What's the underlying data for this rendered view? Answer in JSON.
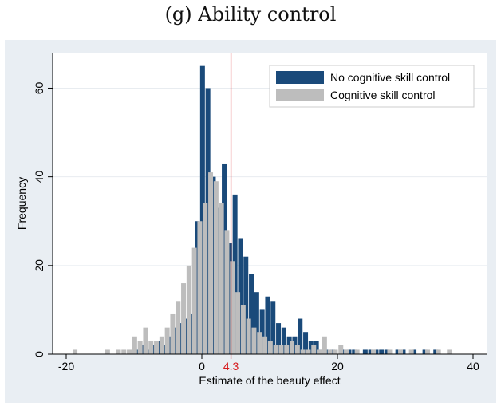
{
  "title": "(g) Ability control",
  "chart_data": {
    "type": "bar",
    "xlabel": "Estimate of the beauty effect",
    "ylabel": "Frequency",
    "xlim": [
      -22,
      42
    ],
    "ylim": [
      0,
      68
    ],
    "xticks": [
      -20,
      0,
      20,
      40
    ],
    "yticks": [
      0,
      20,
      40,
      60
    ],
    "grid": true,
    "legend_position": "top-right",
    "reference_line": {
      "x": 4.3,
      "label": "4.3",
      "color": "#d7191c"
    },
    "bin_width": 0.8,
    "series": [
      {
        "name": "No cognitive skill control",
        "color": "#1a4a7a",
        "x": [
          -9.5,
          -8.7,
          -7.9,
          -7.1,
          -6.3,
          -5.5,
          -4.7,
          -3.9,
          -3.1,
          -2.3,
          -1.5,
          -0.7,
          0.1,
          0.9,
          1.7,
          2.5,
          3.3,
          4.1,
          4.9,
          5.7,
          6.5,
          7.3,
          8.1,
          8.9,
          9.7,
          10.5,
          11.3,
          12.1,
          12.9,
          13.7,
          14.5,
          15.3,
          16.1,
          16.9,
          17.7,
          18.5,
          19.3,
          20.9,
          21.7,
          22.5,
          24.1,
          24.9,
          25.7,
          26.5,
          27.3,
          28.9,
          29.7,
          31.3,
          32.9,
          34.5
        ],
        "y": [
          1,
          2,
          1,
          2,
          3,
          2,
          4,
          6,
          7,
          8,
          9,
          30,
          65,
          60,
          40,
          33,
          43,
          25,
          36,
          26,
          22,
          18,
          14,
          10,
          13,
          12,
          7,
          6,
          4,
          4,
          8,
          5,
          3,
          3,
          1,
          1,
          1,
          1,
          1,
          1,
          1,
          1,
          1,
          1,
          1,
          1,
          1,
          1,
          1,
          1
        ]
      },
      {
        "name": "Cognitive skill control",
        "color": "#bdbdbd",
        "x": [
          -18.7,
          -13.9,
          -12.3,
          -11.5,
          -10.7,
          -9.9,
          -9.1,
          -8.3,
          -7.5,
          -6.7,
          -5.9,
          -5.1,
          -4.3,
          -3.5,
          -2.7,
          -1.9,
          -1.1,
          -0.3,
          0.5,
          1.3,
          2.1,
          2.9,
          3.7,
          4.5,
          5.3,
          6.1,
          6.9,
          7.7,
          8.5,
          9.3,
          10.1,
          10.9,
          11.7,
          12.5,
          13.3,
          14.1,
          14.9,
          15.7,
          16.5,
          17.3,
          18.1,
          18.9,
          19.7,
          20.5,
          21.3,
          22.9,
          25.3,
          27.7,
          29.3,
          30.9,
          33.3,
          34.9,
          36.5
        ],
        "y": [
          1,
          1,
          1,
          1,
          1,
          4,
          3,
          6,
          3,
          3,
          4,
          6,
          9,
          12,
          16,
          20,
          24,
          30,
          34,
          41,
          39,
          34,
          28,
          21,
          14,
          11,
          8,
          6,
          5,
          4,
          3,
          2,
          2,
          2,
          3,
          2,
          1,
          1,
          2,
          1,
          4,
          1,
          1,
          2,
          1,
          1,
          1,
          1,
          1,
          1,
          1,
          1,
          1
        ]
      }
    ]
  }
}
